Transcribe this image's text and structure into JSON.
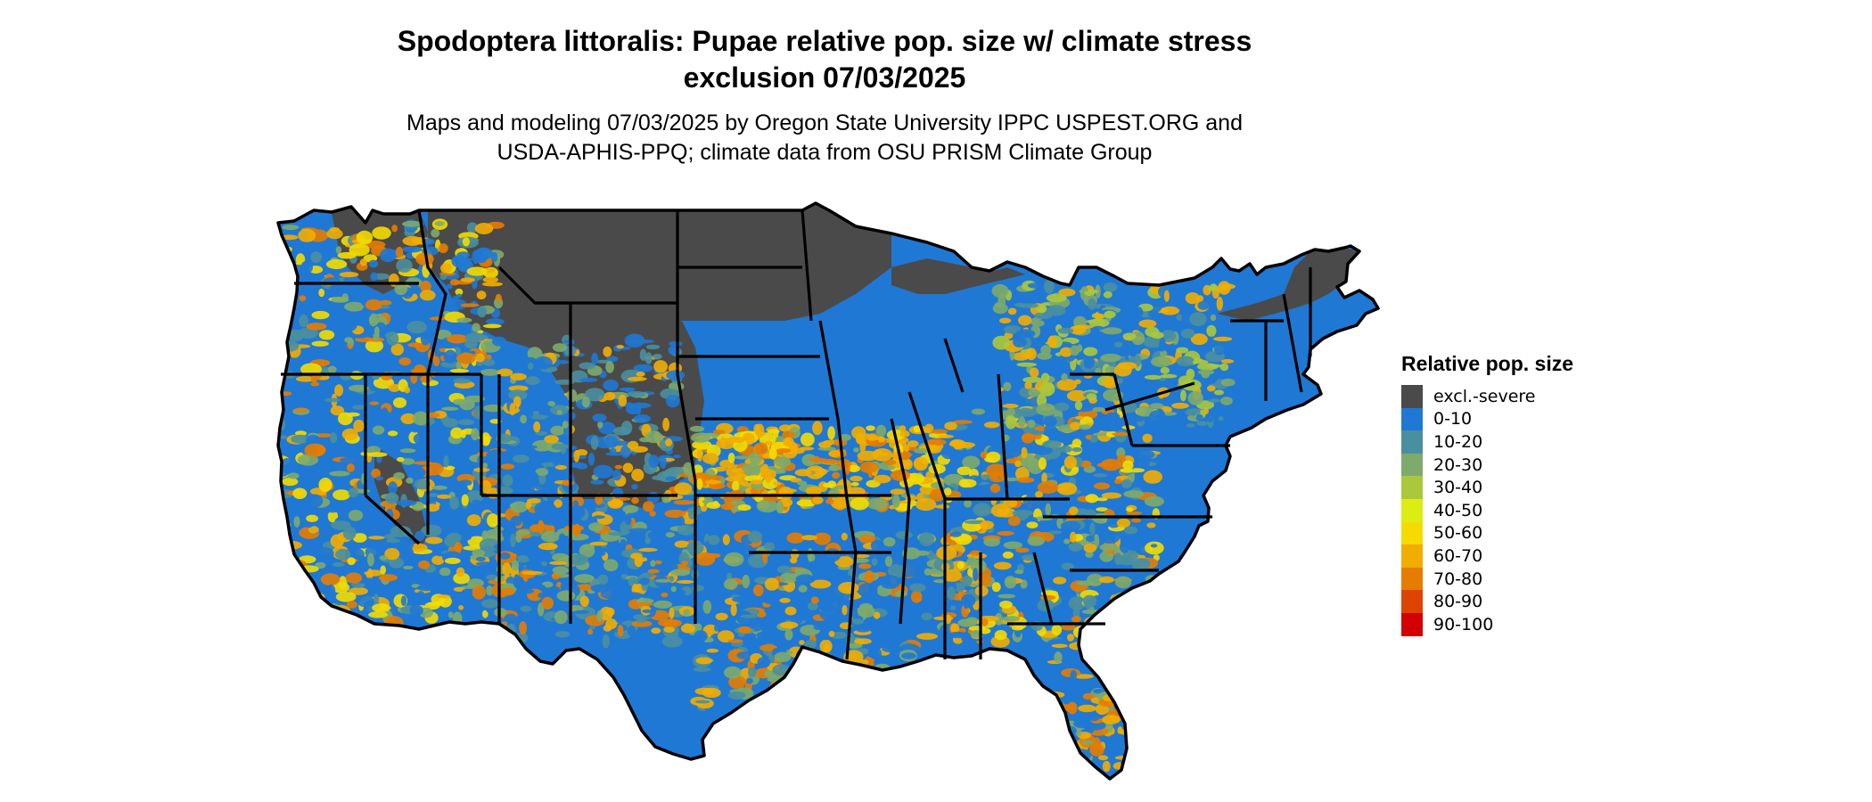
{
  "title_line1": "Spodoptera littoralis: Pupae relative pop. size w/ climate stress",
  "title_line2": "exclusion 07/03/2025",
  "subtitle_line1": "Maps and modeling 07/03/2025 by Oregon State University IPPC USPEST.ORG and",
  "subtitle_line2": "USDA-APHIS-PPQ; climate data from OSU PRISM Climate Group",
  "legend": {
    "title": "Relative pop. size",
    "items": [
      {
        "label": "excl.-severe",
        "color": "#4a4a4a"
      },
      {
        "label": "0-10",
        "color": "#1f78d4"
      },
      {
        "label": "10-20",
        "color": "#4a8fa0"
      },
      {
        "label": "20-30",
        "color": "#7eaa6c"
      },
      {
        "label": "30-40",
        "color": "#abc83c"
      },
      {
        "label": "40-50",
        "color": "#dced14"
      },
      {
        "label": "50-60",
        "color": "#f4dc00"
      },
      {
        "label": "60-70",
        "color": "#f2ad00"
      },
      {
        "label": "70-80",
        "color": "#e67c00"
      },
      {
        "label": "80-90",
        "color": "#dc4400"
      },
      {
        "label": "90-100",
        "color": "#d20000"
      }
    ]
  }
}
